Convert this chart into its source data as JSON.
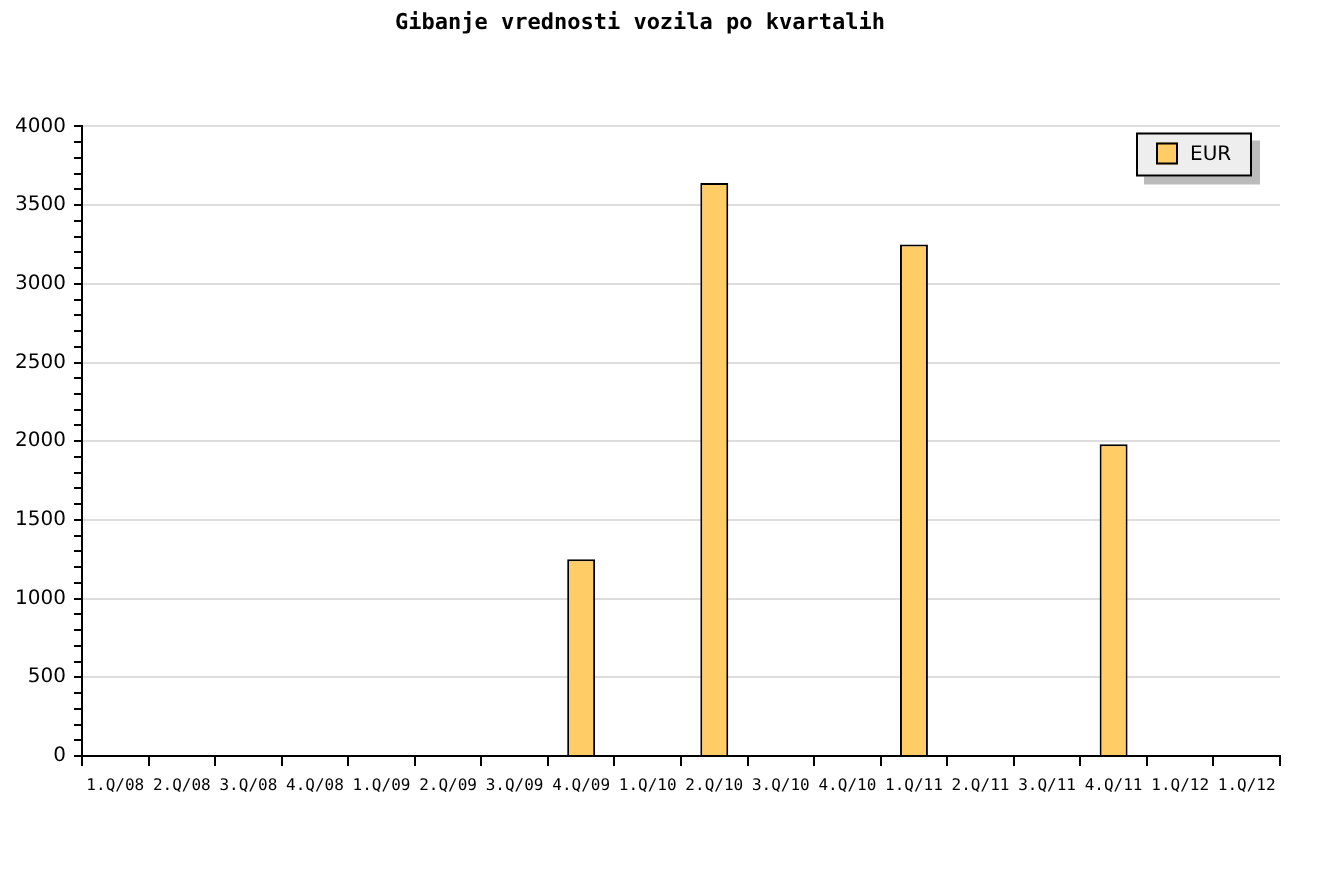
{
  "chart_data": {
    "type": "bar",
    "title": "Gibanje vrednosti vozila po kvartalih",
    "categories": [
      "1.Q/08",
      "2.Q/08",
      "3.Q/08",
      "4.Q/08",
      "1.Q/09",
      "2.Q/09",
      "3.Q/09",
      "4.Q/09",
      "1.Q/10",
      "2.Q/10",
      "3.Q/10",
      "4.Q/10",
      "1.Q/11",
      "2.Q/11",
      "3.Q/11",
      "4.Q/11",
      "1.Q/12",
      "1.Q/12"
    ],
    "series": [
      {
        "name": "EUR",
        "color": "#ffcc66",
        "values": [
          null,
          null,
          null,
          null,
          null,
          null,
          null,
          1250,
          null,
          3640,
          null,
          null,
          3250,
          null,
          null,
          1980,
          null,
          null
        ]
      }
    ],
    "ylim": [
      0,
      4000
    ],
    "yticks": [
      0,
      {
        "value": 100,
        "label": null
      },
      {
        "value": 200,
        "label": null
      },
      {
        "value": 300,
        "label": null
      },
      {
        "value": 400,
        "label": null
      },
      500,
      {
        "value": 600,
        "label": null
      },
      {
        "value": 700,
        "label": null
      },
      {
        "value": 800,
        "label": null
      },
      {
        "value": 900,
        "label": null
      },
      1000,
      {
        "value": 1100,
        "label": null
      },
      {
        "value": 1200,
        "label": null
      },
      {
        "value": 1300,
        "label": null
      },
      {
        "value": 1400,
        "label": null
      },
      1500,
      {
        "value": 1600,
        "label": null
      },
      {
        "value": 1700,
        "label": null
      },
      {
        "value": 1800,
        "label": null
      },
      {
        "value": 1900,
        "label": null
      },
      2000,
      {
        "value": 2100,
        "label": null
      },
      {
        "value": 2200,
        "label": null
      },
      {
        "value": 2300,
        "label": null
      },
      {
        "value": 2400,
        "label": null
      },
      2500,
      {
        "value": 2600,
        "label": null
      },
      {
        "value": 2700,
        "label": null
      },
      {
        "value": 2800,
        "label": null
      },
      {
        "value": 2900,
        "label": null
      },
      3000,
      {
        "value": 3100,
        "label": null
      },
      {
        "value": 3200,
        "label": null
      },
      {
        "value": 3300,
        "label": null
      },
      {
        "value": 3400,
        "label": null
      },
      3500,
      {
        "value": 3600,
        "label": null
      },
      {
        "value": 3700,
        "label": null
      },
      {
        "value": 3800,
        "label": null
      },
      {
        "value": 3900,
        "label": null
      },
      4000
    ],
    "grid": "y",
    "legend": "top right"
  }
}
